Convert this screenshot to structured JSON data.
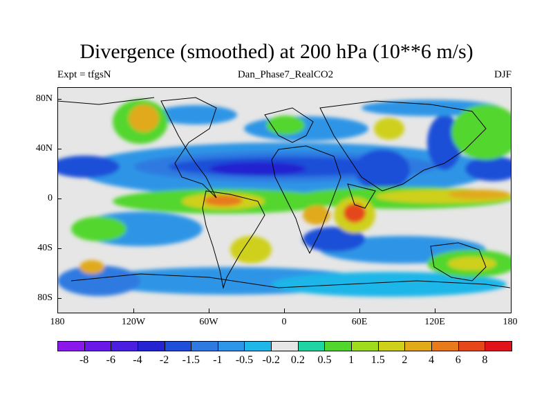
{
  "title": "Divergence (smoothed) at 200 hPa (10**6 m/s)",
  "subtitle_left": "Expt = tfgsN",
  "subtitle_center": "Dan_Phase7_RealCO2",
  "subtitle_right": "DJF",
  "lat_labels": [
    "80N",
    "40N",
    "0",
    "40S",
    "80S"
  ],
  "lon_labels": [
    "180",
    "120W",
    "60W",
    "0",
    "60E",
    "120E",
    "180"
  ],
  "colorbar": {
    "colors": [
      "#8b18ea",
      "#6a18ea",
      "#4b1fe0",
      "#2424d0",
      "#1f4fd8",
      "#2f7ae0",
      "#2f95e6",
      "#1fb6e8",
      "#e6e6e6",
      "#1fd3a2",
      "#52d62e",
      "#9fdc1e",
      "#cfd01a",
      "#e0aa1a",
      "#e77a1a",
      "#e5461a",
      "#e0121a"
    ],
    "labels": [
      "-8",
      "-6",
      "-4",
      "-2",
      "-1.5",
      "-1",
      "-0.5",
      "-0.2",
      "0.2",
      "0.5",
      "1",
      "1.5",
      "2",
      "4",
      "6",
      "8"
    ]
  }
}
